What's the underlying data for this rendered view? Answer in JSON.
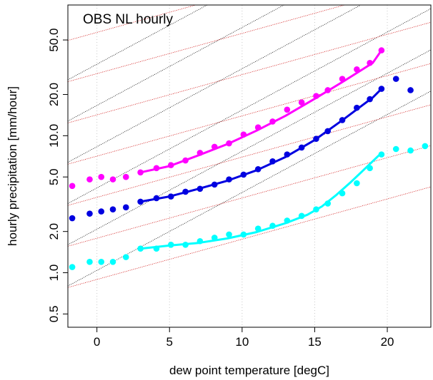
{
  "chart_data": {
    "type": "scatter",
    "title": "OBS NL hourly",
    "xlabel": "dew point temperature [degC]",
    "ylabel": "hourly precipitation [mm/hour]",
    "xlim": [
      -2,
      23
    ],
    "ylim": [
      0.4,
      90
    ],
    "y_scale": "log",
    "x_ticks": [
      0,
      5,
      10,
      15,
      20
    ],
    "x_tick_labels": [
      "0",
      "5",
      "10",
      "15",
      "20"
    ],
    "y_ticks": [
      0.5,
      1.0,
      2.0,
      5.0,
      10.0,
      20.0,
      50.0
    ],
    "y_tick_labels": [
      "0.5",
      "1.0",
      "2.0",
      "5.0",
      "10.0",
      "20.0",
      "50.0"
    ],
    "grid": "vertical dotted",
    "colors": {
      "magenta": "#ff00ff",
      "blue": "#0000e0",
      "cyan": "#00ffff",
      "cc_reference": "#cc0000",
      "dcc_reference": "#000000",
      "grid": "#c8c8c8"
    },
    "series": [
      {
        "color_key": "magenta",
        "x": [
          -1.7,
          -0.5,
          0.3,
          1.1,
          2.0,
          3.0,
          4.1,
          5.1,
          6.1,
          7.1,
          8.1,
          9.1,
          10.1,
          11.1,
          12.1,
          13.1,
          14.1,
          15.1,
          15.9,
          16.9,
          17.9,
          18.8,
          19.6
        ],
        "y": [
          4.3,
          4.8,
          5.0,
          4.8,
          5.0,
          5.4,
          5.8,
          6.1,
          6.6,
          7.5,
          8.3,
          8.8,
          10.2,
          11.5,
          12.7,
          15.5,
          17.5,
          19.5,
          21.5,
          26.0,
          30.5,
          34.0,
          42.0
        ],
        "fit_x": [
          3.0,
          5.0,
          7.0,
          9.0,
          11.0,
          13.0,
          15.0,
          17.0,
          19.0,
          19.6
        ],
        "fit_y": [
          5.4,
          6.0,
          7.2,
          8.7,
          10.9,
          14.0,
          18.6,
          25.0,
          34.0,
          42.0
        ]
      },
      {
        "color_key": "blue",
        "x": [
          -1.7,
          -0.5,
          0.3,
          1.1,
          2.0,
          3.0,
          4.1,
          5.1,
          6.1,
          7.1,
          8.1,
          9.1,
          10.1,
          11.1,
          12.1,
          13.1,
          14.1,
          15.1,
          15.9,
          16.9,
          17.9,
          18.8,
          19.6,
          20.6,
          21.6
        ],
        "y": [
          2.5,
          2.7,
          2.8,
          2.9,
          3.0,
          3.3,
          3.5,
          3.6,
          3.9,
          4.1,
          4.4,
          4.8,
          5.2,
          5.7,
          6.5,
          7.3,
          8.2,
          9.5,
          10.8,
          13.0,
          16.0,
          18.5,
          22.0,
          26.0,
          21.5
        ],
        "fit_x": [
          3.0,
          5.0,
          7.0,
          9.0,
          11.0,
          13.0,
          15.0,
          17.0,
          19.0,
          19.6
        ],
        "fit_y": [
          3.3,
          3.6,
          4.1,
          4.7,
          5.6,
          7.0,
          9.3,
          13.2,
          19.0,
          22.0
        ]
      },
      {
        "color_key": "cyan",
        "x": [
          -1.7,
          -0.5,
          0.3,
          1.1,
          2.0,
          3.0,
          4.1,
          5.1,
          6.1,
          7.1,
          8.1,
          9.1,
          10.1,
          11.1,
          12.1,
          13.1,
          14.1,
          15.1,
          15.9,
          16.9,
          17.9,
          18.8,
          19.6,
          20.6,
          21.6,
          22.6
        ],
        "y": [
          1.1,
          1.2,
          1.2,
          1.2,
          1.3,
          1.5,
          1.5,
          1.6,
          1.6,
          1.7,
          1.8,
          1.9,
          1.9,
          2.1,
          2.2,
          2.4,
          2.6,
          2.9,
          3.2,
          3.8,
          4.5,
          5.8,
          7.3,
          8.0,
          7.8,
          8.4
        ],
        "fit_x": [
          3.0,
          5.0,
          7.0,
          9.0,
          11.0,
          13.0,
          14.5,
          15.5,
          16.5,
          17.5,
          18.5,
          19.6
        ],
        "fit_y": [
          1.5,
          1.58,
          1.65,
          1.78,
          1.98,
          2.3,
          2.65,
          3.05,
          3.7,
          4.6,
          5.8,
          7.5
        ]
      }
    ],
    "cc_reference_lines": {
      "rate_per_degC": 1.07,
      "y_at_minus2": [
        0.78,
        1.56,
        3.1,
        6.2,
        12.4,
        24.8,
        49.6,
        99.2,
        198.4
      ]
    },
    "dcc_reference_lines": {
      "rate_per_degC": 1.14,
      "y_at_minus2": [
        0.8,
        1.6,
        3.2,
        6.4,
        12.8,
        25.6
      ]
    }
  }
}
